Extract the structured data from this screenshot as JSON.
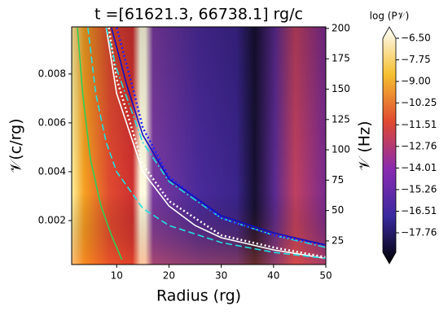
{
  "chart_data": {
    "type": "heatmap",
    "title": "t =[61621.3, 66738.1] rg/c",
    "xlabel": "Radius (rg)",
    "ylabel": "𝒱(c/rg)",
    "y2label": "𝒱 (Hz)",
    "colorbar_label": "log (P𝒱)",
    "xlim": [
      1.4,
      50
    ],
    "xticks": [
      10,
      20,
      30,
      40,
      50
    ],
    "ylim": [
      0.0002,
      0.00993
    ],
    "yticks": [
      0.002,
      0.004,
      0.006,
      0.008
    ],
    "y2lim": [
      5.5,
      201.3
    ],
    "y2ticks": [
      25,
      50,
      75,
      100,
      125,
      150,
      175,
      200
    ],
    "clim": [
      -18.89,
      -6.5
    ],
    "cticks": [
      {
        "value": -6.5,
        "label": "−6.50"
      },
      {
        "value": -7.75,
        "label": "−7.75"
      },
      {
        "value": -9.0,
        "label": "−9.00"
      },
      {
        "value": -10.25,
        "label": "−10.25"
      },
      {
        "value": -11.51,
        "label": "−11.51"
      },
      {
        "value": -12.76,
        "label": "−12.76"
      },
      {
        "value": -14.01,
        "label": "−14.01"
      },
      {
        "value": -15.26,
        "label": "−15.26"
      },
      {
        "value": -16.51,
        "label": "−16.51"
      },
      {
        "value": -17.76,
        "label": "−17.76"
      }
    ],
    "series": [
      {
        "color": "#ffffff",
        "dash": "solid",
        "x": [
          8,
          10,
          15,
          20,
          25,
          30,
          40,
          50
        ],
        "values": [
          0.0099,
          0.0072,
          0.004,
          0.0026,
          0.0018,
          0.0013,
          0.0008,
          0.00045
        ]
      },
      {
        "color": "#ffffff",
        "dash": "dotted",
        "x": [
          8.5,
          10,
          15,
          20,
          30,
          40,
          50
        ],
        "values": [
          0.0099,
          0.0078,
          0.0043,
          0.0028,
          0.0014,
          0.0009,
          0.0005
        ]
      },
      {
        "color": "#22e0e0",
        "dash": "dashed",
        "x": [
          4.5,
          6,
          8,
          10,
          15,
          20,
          30,
          40,
          50
        ],
        "values": [
          0.0099,
          0.0072,
          0.0052,
          0.004,
          0.0025,
          0.0018,
          0.0011,
          0.0007,
          0.00045
        ]
      },
      {
        "color": "#22e0e0",
        "dash": "dashdot",
        "x": [
          8,
          10,
          15,
          20,
          30,
          40,
          50
        ],
        "values": [
          0.0099,
          0.0082,
          0.0052,
          0.0036,
          0.0021,
          0.0014,
          0.0009
        ]
      },
      {
        "color": "#2020ff",
        "dash": "dotted",
        "x": [
          10,
          13,
          15,
          20,
          30,
          40,
          50
        ],
        "values": [
          0.0099,
          0.0075,
          0.0058,
          0.0038,
          0.0021,
          0.0014,
          0.001
        ]
      },
      {
        "color": "#1010c0",
        "dash": "solid",
        "x": [
          9,
          12,
          15,
          20,
          30,
          40,
          50
        ],
        "values": [
          0.0099,
          0.0075,
          0.0055,
          0.0037,
          0.0022,
          0.0015,
          0.001
        ]
      },
      {
        "color": "#33cc55",
        "dash": "solid",
        "x": [
          2.5,
          3.5,
          5,
          7,
          9,
          11
        ],
        "values": [
          0.0099,
          0.0072,
          0.0045,
          0.0026,
          0.0014,
          0.0004
        ]
      }
    ]
  }
}
